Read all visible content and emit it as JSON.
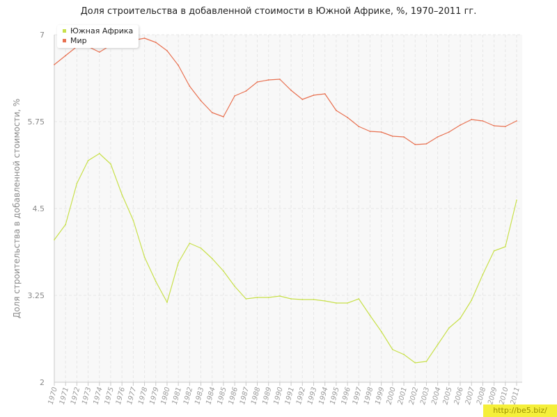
{
  "chart_data": {
    "type": "line",
    "title": "Доля строительства в добавленной стоимости в Южной Африке, %, 1970–2011 гг.",
    "ylabel": "Доля строительства в добавленной стоимости, %",
    "xlabel": "",
    "ylim": [
      2,
      7
    ],
    "yticks": [
      "2",
      "3.25",
      "4.5",
      "5.75",
      "7"
    ],
    "grid": true,
    "legend_position": "top-left",
    "x": [
      "1970",
      "1971",
      "1972",
      "1973",
      "1974",
      "1975",
      "1976",
      "1977",
      "1978",
      "1979",
      "1980",
      "1981",
      "1982",
      "1983",
      "1984",
      "1985",
      "1986",
      "1987",
      "1988",
      "1989",
      "1990",
      "1991",
      "1992",
      "1993",
      "1994",
      "1995",
      "1996",
      "1997",
      "1998",
      "1999",
      "2000",
      "2001",
      "2002",
      "2003",
      "2004",
      "2005",
      "2006",
      "2007",
      "2008",
      "2009",
      "2010",
      "2011"
    ],
    "series": [
      {
        "name": "Южная Африка",
        "color": "#c8e04a",
        "values": [
          4.05,
          4.27,
          4.86,
          5.19,
          5.29,
          5.14,
          4.7,
          4.33,
          3.8,
          3.45,
          3.15,
          3.72,
          4.0,
          3.93,
          3.78,
          3.6,
          3.38,
          3.2,
          3.22,
          3.22,
          3.24,
          3.2,
          3.19,
          3.19,
          3.17,
          3.14,
          3.14,
          3.2,
          2.96,
          2.73,
          2.47,
          2.4,
          2.28,
          2.3,
          2.54,
          2.78,
          2.92,
          3.18,
          3.55,
          3.89,
          3.95,
          4.62
        ]
      },
      {
        "name": "Мир",
        "color": "#e87050",
        "values": [
          6.57,
          6.7,
          6.83,
          6.83,
          6.75,
          6.85,
          6.92,
          6.92,
          6.95,
          6.89,
          6.77,
          6.56,
          6.26,
          6.05,
          5.88,
          5.82,
          6.12,
          6.19,
          6.32,
          6.35,
          6.36,
          6.2,
          6.07,
          6.13,
          6.15,
          5.91,
          5.81,
          5.68,
          5.61,
          5.6,
          5.54,
          5.53,
          5.42,
          5.43,
          5.53,
          5.6,
          5.7,
          5.78,
          5.76,
          5.69,
          5.68,
          5.76
        ]
      }
    ]
  },
  "watermark": "http://be5.biz/"
}
